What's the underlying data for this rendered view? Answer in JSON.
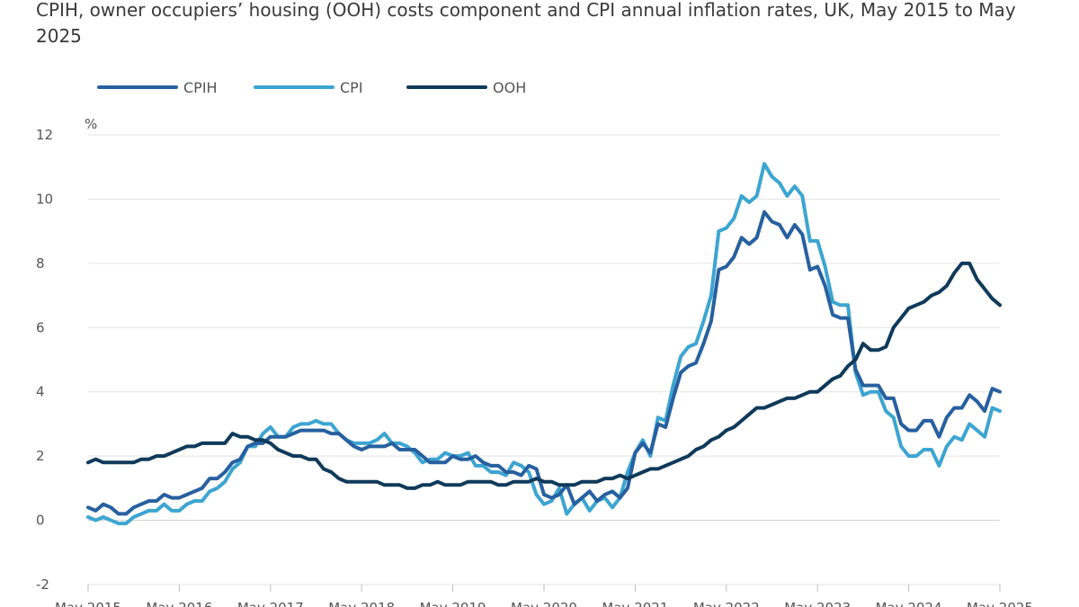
{
  "chart_data": {
    "type": "line",
    "title": "CPIH, owner occupiers’ housing (OOH) costs component and CPI annual inflation rates, UK, May 2015 to May 2025",
    "ylabel": "%",
    "xlabel": "",
    "ylim": [
      -2,
      12
    ],
    "yticks": [
      "-2",
      "0",
      "2",
      "4",
      "6",
      "8",
      "10",
      "12"
    ],
    "grid": true,
    "legend_position": "top-left",
    "x_start": "May 2015",
    "x_months": 121,
    "xticks": [
      {
        "label": "May 2015",
        "index": 0
      },
      {
        "label": "May 2016",
        "index": 12
      },
      {
        "label": "May 2017",
        "index": 24
      },
      {
        "label": "May 2018",
        "index": 36
      },
      {
        "label": "May 2019",
        "index": 48
      },
      {
        "label": "May 2020",
        "index": 60
      },
      {
        "label": "May 2021",
        "index": 72
      },
      {
        "label": "May 2022",
        "index": 84
      },
      {
        "label": "May 2023",
        "index": 96
      },
      {
        "label": "May 2024",
        "index": 108
      },
      {
        "label": "May 2025",
        "index": 120
      }
    ],
    "series": [
      {
        "name": "CPIH",
        "color": "#27609f",
        "values": [
          0.4,
          0.3,
          0.5,
          0.4,
          0.2,
          0.2,
          0.4,
          0.5,
          0.6,
          0.6,
          0.8,
          0.7,
          0.7,
          0.8,
          0.9,
          1.0,
          1.3,
          1.3,
          1.5,
          1.8,
          1.9,
          2.3,
          2.4,
          2.4,
          2.6,
          2.6,
          2.6,
          2.7,
          2.8,
          2.8,
          2.8,
          2.8,
          2.7,
          2.7,
          2.5,
          2.3,
          2.2,
          2.3,
          2.3,
          2.3,
          2.4,
          2.2,
          2.2,
          2.2,
          2.0,
          1.8,
          1.8,
          1.8,
          2.0,
          1.9,
          1.9,
          2.0,
          1.8,
          1.7,
          1.7,
          1.5,
          1.5,
          1.4,
          1.7,
          1.6,
          0.8,
          0.7,
          0.8,
          1.1,
          0.5,
          0.7,
          0.9,
          0.6,
          0.8,
          0.9,
          0.7,
          1.0,
          2.1,
          2.4,
          2.1,
          3.0,
          2.9,
          3.8,
          4.6,
          4.8,
          4.9,
          5.5,
          6.2,
          7.8,
          7.9,
          8.2,
          8.8,
          8.6,
          8.8,
          9.6,
          9.3,
          9.2,
          8.8,
          9.2,
          8.9,
          7.8,
          7.9,
          7.3,
          6.4,
          6.3,
          6.3,
          4.7,
          4.2,
          4.2,
          4.2,
          3.8,
          3.8,
          3.0,
          2.8,
          2.8,
          3.1,
          3.1,
          2.6,
          3.2,
          3.5,
          3.5,
          3.9,
          3.7,
          3.4,
          4.1,
          4.0
        ]
      },
      {
        "name": "CPI",
        "color": "#3ca5d1",
        "values": [
          0.1,
          0.0,
          0.1,
          0.0,
          -0.1,
          -0.1,
          0.1,
          0.2,
          0.3,
          0.3,
          0.5,
          0.3,
          0.3,
          0.5,
          0.6,
          0.6,
          0.9,
          1.0,
          1.2,
          1.6,
          1.8,
          2.3,
          2.3,
          2.7,
          2.9,
          2.6,
          2.6,
          2.9,
          3.0,
          3.0,
          3.1,
          3.0,
          3.0,
          2.7,
          2.5,
          2.4,
          2.4,
          2.4,
          2.5,
          2.7,
          2.4,
          2.4,
          2.3,
          2.1,
          1.8,
          1.9,
          1.9,
          2.1,
          2.0,
          2.0,
          2.1,
          1.7,
          1.7,
          1.5,
          1.5,
          1.4,
          1.8,
          1.7,
          1.5,
          0.8,
          0.5,
          0.6,
          1.0,
          0.2,
          0.5,
          0.7,
          0.3,
          0.6,
          0.7,
          0.4,
          0.7,
          1.5,
          2.1,
          2.5,
          2.0,
          3.2,
          3.1,
          4.2,
          5.1,
          5.4,
          5.5,
          6.2,
          7.0,
          9.0,
          9.1,
          9.4,
          10.1,
          9.9,
          10.1,
          11.1,
          10.7,
          10.5,
          10.1,
          10.4,
          10.1,
          8.7,
          8.7,
          7.9,
          6.8,
          6.7,
          6.7,
          4.6,
          3.9,
          4.0,
          4.0,
          3.4,
          3.2,
          2.3,
          2.0,
          2.0,
          2.2,
          2.2,
          1.7,
          2.3,
          2.6,
          2.5,
          3.0,
          2.8,
          2.6,
          3.5,
          3.4
        ]
      },
      {
        "name": "OOH",
        "color": "#0f3a5a",
        "values": [
          1.8,
          1.9,
          1.8,
          1.8,
          1.8,
          1.8,
          1.8,
          1.9,
          1.9,
          2.0,
          2.0,
          2.1,
          2.2,
          2.3,
          2.3,
          2.4,
          2.4,
          2.4,
          2.4,
          2.7,
          2.6,
          2.6,
          2.5,
          2.5,
          2.4,
          2.2,
          2.1,
          2.0,
          2.0,
          1.9,
          1.9,
          1.6,
          1.5,
          1.3,
          1.2,
          1.2,
          1.2,
          1.2,
          1.2,
          1.1,
          1.1,
          1.1,
          1.0,
          1.0,
          1.1,
          1.1,
          1.2,
          1.1,
          1.1,
          1.1,
          1.2,
          1.2,
          1.2,
          1.2,
          1.1,
          1.1,
          1.2,
          1.2,
          1.2,
          1.3,
          1.2,
          1.2,
          1.1,
          1.1,
          1.1,
          1.2,
          1.2,
          1.2,
          1.3,
          1.3,
          1.4,
          1.3,
          1.4,
          1.5,
          1.6,
          1.6,
          1.7,
          1.8,
          1.9,
          2.0,
          2.2,
          2.3,
          2.5,
          2.6,
          2.8,
          2.9,
          3.1,
          3.3,
          3.5,
          3.5,
          3.6,
          3.7,
          3.8,
          3.8,
          3.9,
          4.0,
          4.0,
          4.2,
          4.4,
          4.5,
          4.8,
          5.0,
          5.5,
          5.3,
          5.3,
          5.4,
          6.0,
          6.3,
          6.6,
          6.7,
          6.8,
          7.0,
          7.1,
          7.3,
          7.7,
          8.0,
          8.0,
          7.5,
          7.2,
          6.9,
          6.7
        ]
      }
    ]
  }
}
